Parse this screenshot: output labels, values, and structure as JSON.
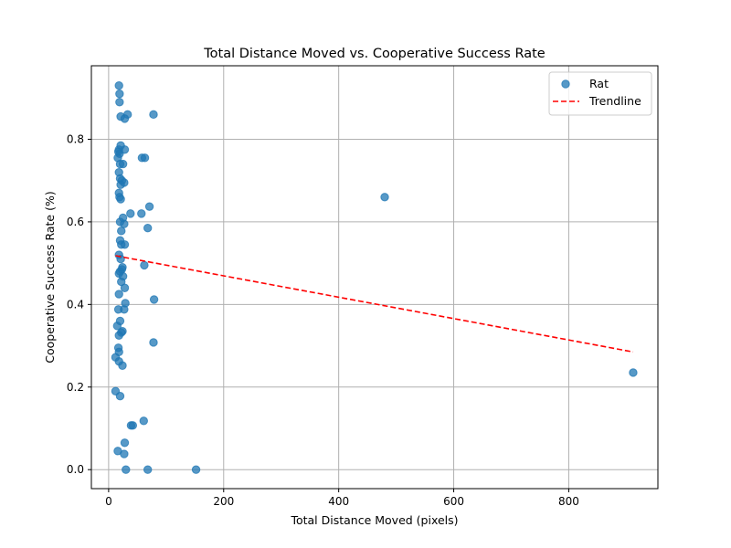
{
  "chart_data": {
    "type": "scatter",
    "title": "Total Distance Moved vs. Cooperative Success Rate",
    "xlabel": "Total Distance Moved (pixels)",
    "ylabel": "Cooperative Success Rate (%)",
    "xlim": [
      -30,
      955
    ],
    "ylim": [
      -0.046,
      0.978
    ],
    "xticks": [
      0,
      200,
      400,
      600,
      800
    ],
    "xtick_labels": [
      "0",
      "200",
      "400",
      "600",
      "800"
    ],
    "yticks": [
      0.0,
      0.2,
      0.4,
      0.6,
      0.8
    ],
    "ytick_labels": [
      "0.0",
      "0.2",
      "0.4",
      "0.6",
      "0.8"
    ],
    "grid": true,
    "legend_position": "top-right",
    "colors": {
      "points": "#1f77b4",
      "trendline": "#ff0000"
    },
    "series": [
      {
        "name": "Rat",
        "kind": "scatter",
        "points": [
          [
            18,
            0.93
          ],
          [
            19,
            0.91
          ],
          [
            19,
            0.89
          ],
          [
            21,
            0.855
          ],
          [
            28,
            0.85
          ],
          [
            33,
            0.86
          ],
          [
            78,
            0.86
          ],
          [
            21,
            0.785
          ],
          [
            18,
            0.775
          ],
          [
            28,
            0.775
          ],
          [
            17,
            0.77
          ],
          [
            19,
            0.765
          ],
          [
            16,
            0.755
          ],
          [
            58,
            0.755
          ],
          [
            63,
            0.755
          ],
          [
            20,
            0.74
          ],
          [
            25,
            0.74
          ],
          [
            18,
            0.72
          ],
          [
            20,
            0.705
          ],
          [
            23,
            0.7
          ],
          [
            27,
            0.695
          ],
          [
            21,
            0.69
          ],
          [
            18,
            0.67
          ],
          [
            19,
            0.66
          ],
          [
            21,
            0.655
          ],
          [
            480,
            0.66
          ],
          [
            71,
            0.637
          ],
          [
            38,
            0.62
          ],
          [
            57,
            0.62
          ],
          [
            25,
            0.61
          ],
          [
            20,
            0.6
          ],
          [
            27,
            0.595
          ],
          [
            22,
            0.578
          ],
          [
            68,
            0.585
          ],
          [
            20,
            0.555
          ],
          [
            22,
            0.545
          ],
          [
            28,
            0.545
          ],
          [
            18,
            0.52
          ],
          [
            21,
            0.51
          ],
          [
            24,
            0.49
          ],
          [
            23,
            0.485
          ],
          [
            20,
            0.48
          ],
          [
            18,
            0.475
          ],
          [
            62,
            0.495
          ],
          [
            25,
            0.468
          ],
          [
            22,
            0.455
          ],
          [
            28,
            0.44
          ],
          [
            18,
            0.425
          ],
          [
            79,
            0.412
          ],
          [
            29,
            0.403
          ],
          [
            17,
            0.388
          ],
          [
            27,
            0.388
          ],
          [
            20,
            0.36
          ],
          [
            15,
            0.348
          ],
          [
            24,
            0.335
          ],
          [
            22,
            0.332
          ],
          [
            18,
            0.325
          ],
          [
            78,
            0.308
          ],
          [
            17,
            0.295
          ],
          [
            18,
            0.285
          ],
          [
            12,
            0.272
          ],
          [
            18,
            0.262
          ],
          [
            24,
            0.252
          ],
          [
            912,
            0.235
          ],
          [
            12,
            0.19
          ],
          [
            20,
            0.178
          ],
          [
            61,
            0.118
          ],
          [
            39,
            0.107
          ],
          [
            42,
            0.107
          ],
          [
            28,
            0.065
          ],
          [
            16,
            0.045
          ],
          [
            27,
            0.038
          ],
          [
            30,
            0.0
          ],
          [
            68,
            0.0
          ],
          [
            152,
            0.0
          ]
        ]
      },
      {
        "name": "Trendline",
        "kind": "line",
        "style": "dashed",
        "points": [
          [
            12,
            0.518
          ],
          [
            912,
            0.285
          ]
        ]
      }
    ]
  }
}
